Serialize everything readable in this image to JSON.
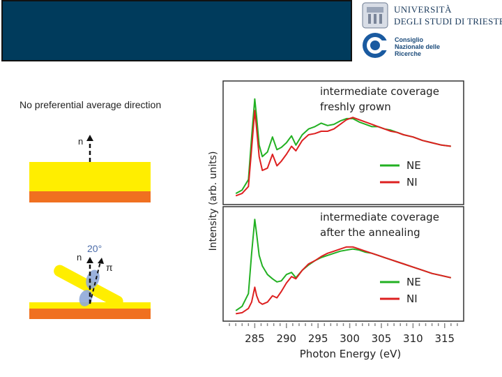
{
  "header": {
    "univ_name_line1": "UNIVERSITÀ",
    "univ_name_line2": "DEGLI STUDI DI TRIESTE",
    "cnr_name": "Consiglio\nNazionale delle\nRicerche"
  },
  "left_panel": {
    "caption": "No preferential average direction",
    "normal_label_top": "n",
    "normal_label_bottom": "n",
    "angle_label": "20°",
    "pi_label": "π"
  },
  "colors": {
    "title_bar": "#003b5c",
    "substrate_yellow": "#ffee00",
    "substrate_orange": "#f07020",
    "ne_green": "#22b022",
    "ni_red": "#dd2020",
    "orbital_blue": "#8fa8d8"
  },
  "chart_data": {
    "type": "line",
    "xlabel": "Photon Energy (eV)",
    "ylabel": "Intensity (arb. units)",
    "xlim": [
      280,
      318
    ],
    "xticks": [
      285,
      290,
      295,
      300,
      305,
      310,
      315
    ],
    "panels": [
      {
        "annotation": [
          "intermediate coverage",
          "freshly grown"
        ],
        "legend": "bottom-right",
        "ylim": [
          0,
          1
        ],
        "series": [
          {
            "name": "NE",
            "color": "#22b022",
            "x": [
              282,
              283,
              284,
              284.5,
              285,
              285.3,
              285.7,
              286.2,
              287,
              287.8,
              288.5,
              289.2,
              290,
              290.8,
              291.5,
              292.5,
              293.5,
              294.5,
              295.5,
              296.5,
              297.5,
              298.5,
              299.5,
              300.5,
              301.5,
              302.5,
              303.5,
              304.5,
              305.5,
              306.5,
              307.5,
              308.5,
              310,
              311.5,
              313,
              314.5,
              316
            ],
            "y": [
              0.06,
              0.09,
              0.18,
              0.55,
              0.88,
              0.72,
              0.48,
              0.38,
              0.42,
              0.55,
              0.44,
              0.46,
              0.5,
              0.56,
              0.48,
              0.57,
              0.62,
              0.64,
              0.67,
              0.65,
              0.66,
              0.69,
              0.71,
              0.71,
              0.68,
              0.66,
              0.64,
              0.64,
              0.62,
              0.61,
              0.59,
              0.57,
              0.55,
              0.52,
              0.5,
              0.48,
              0.47
            ]
          },
          {
            "name": "NI",
            "color": "#dd2020",
            "x": [
              282,
              283,
              284,
              284.5,
              285,
              285.3,
              285.7,
              286.2,
              287,
              287.8,
              288.5,
              289.2,
              290,
              290.8,
              291.5,
              292.5,
              293.5,
              294.5,
              295.5,
              296.5,
              297.5,
              298.5,
              299.5,
              300.5,
              301.5,
              302.5,
              303.5,
              304.5,
              305.5,
              306.5,
              307.5,
              308.5,
              310,
              311.5,
              313,
              314.5,
              316
            ],
            "y": [
              0.04,
              0.06,
              0.12,
              0.45,
              0.78,
              0.62,
              0.38,
              0.26,
              0.28,
              0.4,
              0.3,
              0.34,
              0.4,
              0.47,
              0.43,
              0.52,
              0.57,
              0.58,
              0.6,
              0.6,
              0.62,
              0.66,
              0.7,
              0.72,
              0.7,
              0.68,
              0.66,
              0.64,
              0.62,
              0.6,
              0.59,
              0.57,
              0.55,
              0.52,
              0.5,
              0.48,
              0.47
            ]
          }
        ]
      },
      {
        "annotation": [
          "intermediate coverage",
          "after the annealing"
        ],
        "legend": "bottom-right",
        "ylim": [
          0,
          1
        ],
        "series": [
          {
            "name": "NE",
            "color": "#22b022",
            "x": [
              282,
              283,
              284,
              284.5,
              285,
              285.3,
              285.7,
              286.2,
              287,
              287.8,
              288.5,
              289.2,
              290,
              290.8,
              291.5,
              292.5,
              293.5,
              294.5,
              295.5,
              296.5,
              297.5,
              298.5,
              299.5,
              300.5,
              301.5,
              302.5,
              303.5,
              304.5,
              305.5,
              306.5,
              307.5,
              308.5,
              310,
              311.5,
              313,
              314.5,
              316
            ],
            "y": [
              0.06,
              0.1,
              0.22,
              0.6,
              0.92,
              0.78,
              0.58,
              0.48,
              0.4,
              0.36,
              0.33,
              0.34,
              0.4,
              0.42,
              0.37,
              0.44,
              0.49,
              0.53,
              0.56,
              0.58,
              0.6,
              0.62,
              0.63,
              0.64,
              0.63,
              0.61,
              0.6,
              0.58,
              0.56,
              0.54,
              0.52,
              0.5,
              0.47,
              0.44,
              0.41,
              0.39,
              0.37
            ]
          },
          {
            "name": "NI",
            "color": "#dd2020",
            "x": [
              282,
              283,
              284,
              284.5,
              285,
              285.3,
              285.7,
              286.2,
              287,
              287.8,
              288.5,
              289.2,
              290,
              290.8,
              291.5,
              292.5,
              293.5,
              294.5,
              295.5,
              296.5,
              297.5,
              298.5,
              299.5,
              300.5,
              301.5,
              302.5,
              303.5,
              304.5,
              305.5,
              306.5,
              307.5,
              308.5,
              310,
              311.5,
              313,
              314.5,
              316
            ],
            "y": [
              0.03,
              0.04,
              0.08,
              0.14,
              0.28,
              0.2,
              0.14,
              0.12,
              0.14,
              0.2,
              0.18,
              0.24,
              0.32,
              0.38,
              0.36,
              0.44,
              0.5,
              0.53,
              0.57,
              0.6,
              0.62,
              0.64,
              0.66,
              0.66,
              0.64,
              0.62,
              0.6,
              0.58,
              0.56,
              0.54,
              0.52,
              0.5,
              0.47,
              0.44,
              0.41,
              0.39,
              0.37
            ]
          }
        ]
      }
    ]
  }
}
